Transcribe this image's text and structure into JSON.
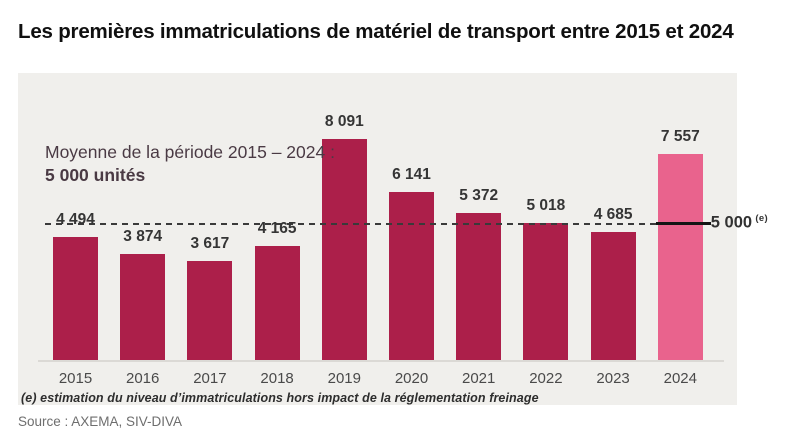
{
  "title": "Les premières immatriculations de matériel de transport entre 2015 et 2024",
  "chart_data": {
    "type": "bar",
    "title": "Les premières immatriculations de matériel de transport entre 2015 et 2024",
    "categories": [
      "2015",
      "2016",
      "2017",
      "2018",
      "2019",
      "2020",
      "2021",
      "2022",
      "2023",
      "2024"
    ],
    "values": [
      4494,
      3874,
      3617,
      4165,
      8091,
      6141,
      5372,
      5018,
      4685,
      7557
    ],
    "value_labels": [
      "4 494",
      "3 874",
      "3 617",
      "4 165",
      "8 091",
      "6 141",
      "5 372",
      "5 018",
      "4 685",
      "7 557"
    ],
    "highlight_index": 9,
    "annotation": {
      "line1": "Moyenne de la période 2015 – 2024 :",
      "line2": "5 000 unités"
    },
    "average_line": {
      "value": 5000,
      "label": "5 000",
      "superscript": "(e)"
    },
    "ylim": [
      0,
      10500
    ],
    "grid": false,
    "legend": "none",
    "xlabel": "",
    "ylabel": "",
    "colors": {
      "bar": "#ac1f4a",
      "bar_highlight": "#e9638d",
      "panel_bg": "#f0efec",
      "average_dash": "#3a3a3a",
      "average_solid": "#141414"
    },
    "footnote": "(e) estimation du niveau d’immatriculations hors impact de la réglementation freinage"
  },
  "source": "Source : AXEMA, SIV-DIVA"
}
